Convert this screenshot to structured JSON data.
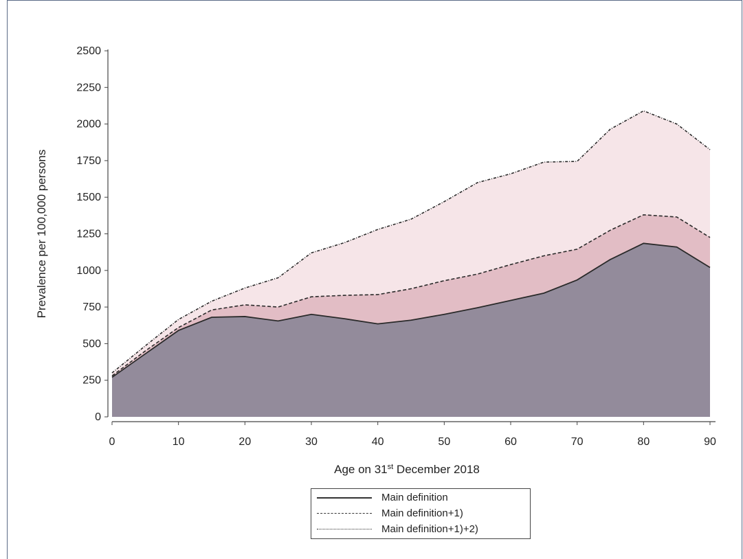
{
  "chart_data": {
    "type": "area",
    "title": "",
    "xlabel_prefix": "Age on 31",
    "xlabel_sup": "st",
    "xlabel_suffix": " December 2018",
    "ylabel": "Prevalence per 100,000 persons",
    "xlim": [
      0,
      90
    ],
    "ylim": [
      0,
      2500
    ],
    "xticks": [
      0,
      10,
      20,
      30,
      40,
      50,
      60,
      70,
      80,
      90
    ],
    "yticks": [
      0,
      250,
      500,
      750,
      1000,
      1250,
      1500,
      1750,
      2000,
      2250,
      2500
    ],
    "grid": false,
    "legend_position": "bottom",
    "x": [
      0,
      5,
      10,
      15,
      20,
      25,
      30,
      35,
      40,
      45,
      50,
      55,
      60,
      65,
      70,
      75,
      80,
      85,
      90
    ],
    "series": [
      {
        "name": "Main definition",
        "line_style": "solid",
        "fill": "#938b9b",
        "values": [
          270,
          430,
          590,
          680,
          685,
          655,
          700,
          670,
          635,
          660,
          700,
          745,
          795,
          845,
          935,
          1075,
          1185,
          1160,
          1020
        ]
      },
      {
        "name": "Main definition+1)",
        "line_style": "dashed",
        "fill": "#e2bdc5",
        "values": [
          280,
          450,
          610,
          730,
          765,
          750,
          820,
          830,
          835,
          875,
          930,
          975,
          1040,
          1100,
          1145,
          1275,
          1380,
          1365,
          1225
        ]
      },
      {
        "name": "Main definition+1)+2)",
        "line_style": "dash-dot",
        "fill": "#f6e5e8",
        "values": [
          300,
          485,
          665,
          790,
          880,
          950,
          1120,
          1190,
          1280,
          1350,
          1470,
          1600,
          1660,
          1740,
          1745,
          1965,
          2090,
          2000,
          1825
        ]
      }
    ]
  }
}
